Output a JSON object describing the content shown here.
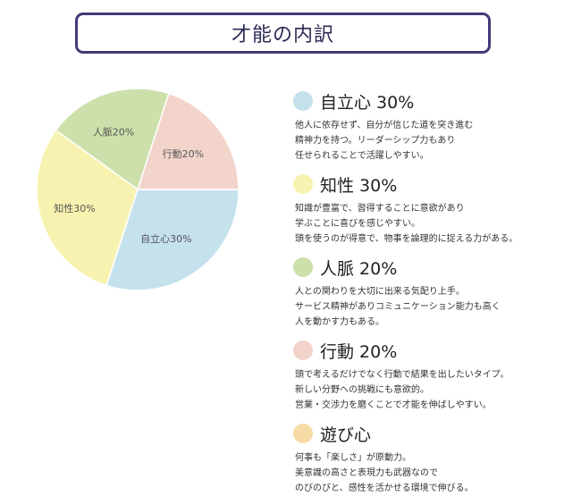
{
  "title": "才能の内訳",
  "chart_data": {
    "type": "pie",
    "slices": [
      {
        "label": "自立心",
        "value": 30,
        "color": "#c4e1ec",
        "pie_label": "自立心30%"
      },
      {
        "label": "知性",
        "value": 30,
        "color": "#f8f2b0",
        "pie_label": "知性30%"
      },
      {
        "label": "人脈",
        "value": 20,
        "color": "#cde0ab",
        "pie_label": "人脈20%"
      },
      {
        "label": "行動",
        "value": 20,
        "color": "#f2d4cb",
        "pie_label": "行動20%"
      }
    ]
  },
  "legend": [
    {
      "title": "自立心 30%",
      "color": "#c4e1ec",
      "lines": [
        "他人に依存せず、自分が信じた道を突き進む",
        "精神力を持つ。リーダーシップ力もあり",
        "任せられることで活躍しやすい。"
      ]
    },
    {
      "title": "知性 30%",
      "color": "#f8f2b0",
      "lines": [
        "知識が豊富で、習得することに意欲があり",
        "学ぶことに喜びを感じやすい。",
        "頭を使うのが得意で、物事を論理的に捉える力がある。"
      ]
    },
    {
      "title": "人脈 20%",
      "color": "#cde0ab",
      "lines": [
        "人との関わりを大切に出来る気配り上手。",
        "サービス精神がありコミュニケーション能力も高く",
        "人を動かす力もある。"
      ]
    },
    {
      "title": "行動 20%",
      "color": "#f2d4cb",
      "lines": [
        "頭で考えるだけでなく行動で結果を出したいタイプ。",
        "新しい分野への挑戦にも意欲的。",
        "営業・交渉力を磨くことで才能を伸ばしやすい。"
      ]
    },
    {
      "title": "遊び心",
      "color": "#f7dba7",
      "lines": [
        "何事も「楽しさ」が原動力。",
        "美意識の高さと表現力も武器なので",
        "のびのびと、感性を活かせる環境で伸びる。"
      ]
    }
  ]
}
